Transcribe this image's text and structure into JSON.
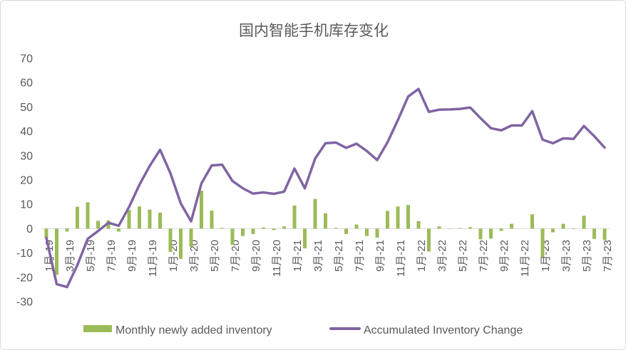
{
  "chart_data": {
    "type": "bar",
    "title": "国内智能手机库存变化",
    "categories": [
      "1月-19",
      "",
      "3月-19",
      "",
      "5月-19",
      "",
      "7月-19",
      "",
      "9月-19",
      "",
      "11月-19",
      "",
      "1月-20",
      "",
      "3月-20",
      "",
      "5月-20",
      "",
      "7月-20",
      "",
      "9月-20",
      "",
      "11月-20",
      "",
      "1月-21",
      "",
      "3月-21",
      "",
      "5月-21",
      "",
      "7月-21",
      "",
      "9月-21",
      "",
      "11月-21",
      "",
      "1月-22",
      "",
      "3月-22",
      "",
      "5月-22",
      "",
      "7月-22",
      "",
      "9月-22",
      "",
      "11月-22",
      "",
      "1月-23",
      "",
      "3月-23",
      "",
      "5月-23",
      "",
      "7月-23"
    ],
    "series": [
      {
        "name": "Monthly newly added inventory",
        "type": "bar",
        "color": "#9BBB59",
        "values": [
          -3.8,
          -19.0,
          -1.2,
          9.0,
          10.8,
          3.2,
          3.4,
          -1.2,
          7.7,
          9.1,
          7.8,
          6.6,
          -9.6,
          -12.4,
          -7.4,
          15.6,
          7.4,
          0.3,
          -6.7,
          -3.0,
          -2.2,
          0.5,
          -0.6,
          0.9,
          9.5,
          -8.1,
          12.2,
          6.3,
          0.3,
          -2.2,
          1.7,
          -3.0,
          -3.7,
          7.3,
          9.1,
          9.7,
          3.1,
          -9.4,
          0.9,
          0.1,
          0.2,
          0.6,
          -4.4,
          -4.1,
          -0.9,
          2.0,
          0.0,
          5.9,
          -11.7,
          -1.5,
          2.0,
          -0.2,
          5.3,
          -4.2,
          -4.7
        ]
      },
      {
        "name": "Accumulated Inventory Change",
        "type": "line",
        "color": "#8064A2",
        "values": [
          -3.8,
          -22.8,
          -24.0,
          -15.0,
          -4.2,
          -1.0,
          2.4,
          1.2,
          8.9,
          18.0,
          25.8,
          32.4,
          22.8,
          10.4,
          3.0,
          18.6,
          26.0,
          26.3,
          19.6,
          16.6,
          14.4,
          14.9,
          14.3,
          15.2,
          24.7,
          16.6,
          28.8,
          35.1,
          35.4,
          33.2,
          34.9,
          31.9,
          28.2,
          35.5,
          44.6,
          54.3,
          57.4,
          48.0,
          48.9,
          49.0,
          49.2,
          49.8,
          45.4,
          41.3,
          40.4,
          42.4,
          42.4,
          48.3,
          36.6,
          35.1,
          37.1,
          36.9,
          42.2,
          38.0,
          33.3
        ]
      }
    ],
    "ylim": [
      -30,
      70
    ],
    "y_ticks": [
      70,
      60,
      50,
      40,
      30,
      20,
      10,
      0,
      -10,
      -20,
      -30
    ],
    "grid": false,
    "legend": "bottom",
    "colors": {
      "text": "#595959",
      "border": "#D9D9D9"
    }
  }
}
